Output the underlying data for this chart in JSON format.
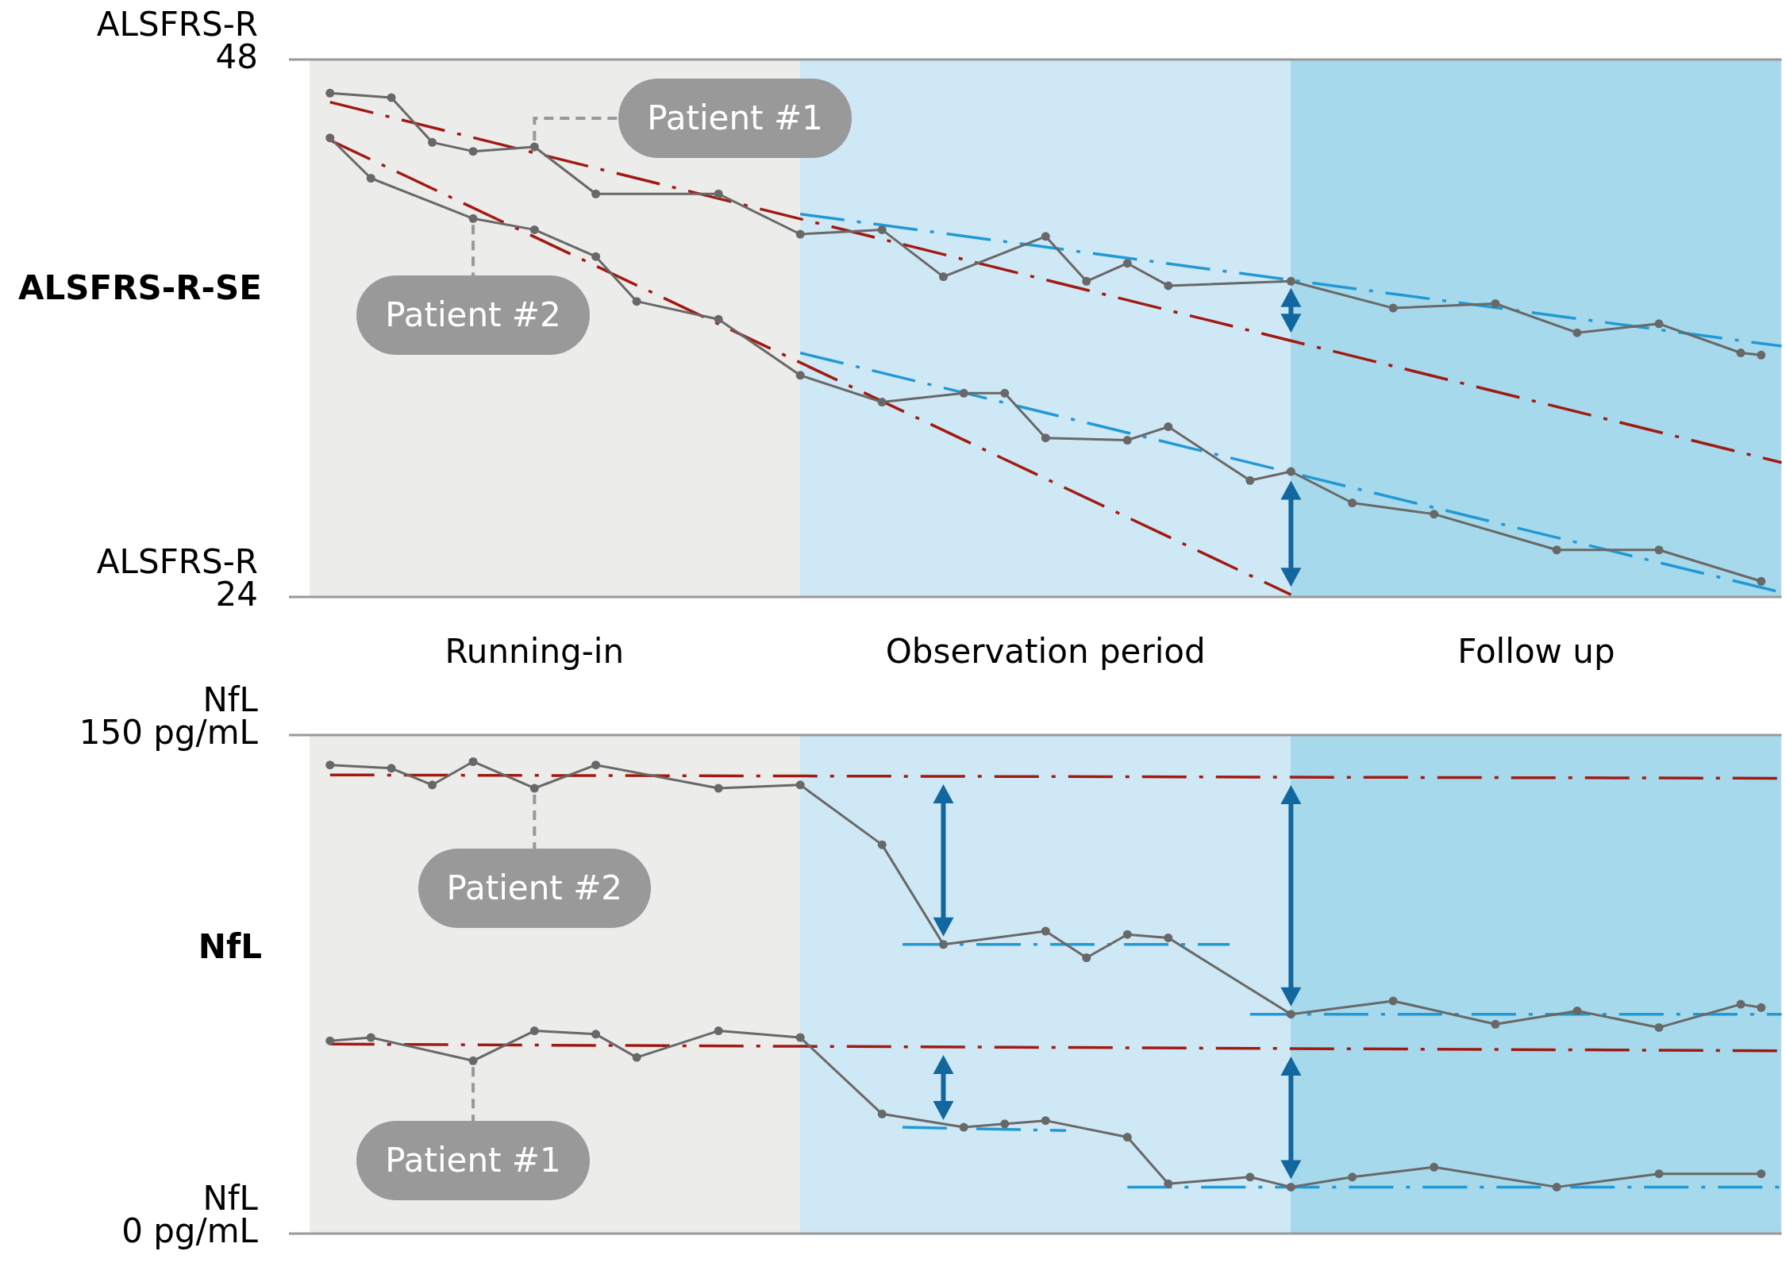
{
  "chart_data": [
    {
      "type": "line",
      "ylabel": "ALSFRS-R-SE",
      "annotations": [
        "ALSFRS-R",
        "ALSFRS-R"
      ],
      "categories": [
        null,
        null,
        null,
        null,
        null,
        null,
        null,
        null,
        null,
        null,
        null,
        "Running-in",
        null,
        null,
        null,
        null,
        null,
        null,
        null,
        null,
        null,
        null,
        null,
        null,
        null,
        null,
        null,
        null,
        null,
        null,
        null,
        null,
        null,
        null,
        null,
        null,
        "Observation period",
        null,
        null,
        null,
        null,
        null,
        null,
        null,
        null,
        null,
        null,
        null,
        null,
        null,
        null,
        null,
        null,
        null,
        null,
        null,
        null,
        null,
        null,
        null,
        "Follow up",
        null,
        null,
        null,
        null,
        null,
        null,
        null,
        null,
        null,
        null,
        null,
        null
      ],
      "ylim": [
        24,
        48
      ],
      "yticks": [
        24,
        48
      ],
      "series": [
        {
          "name": "Patient #1",
          "color": "#686868",
          "marker": "circle",
          "values": [
            null,
            46.5,
            null,
            null,
            46.3,
            null,
            44.3,
            null,
            43.9,
            null,
            null,
            44.1,
            null,
            null,
            42.0,
            null,
            null,
            null,
            null,
            null,
            42.0,
            null,
            null,
            null,
            40.2,
            null,
            null,
            null,
            40.4,
            null,
            null,
            38.3,
            null,
            null,
            null,
            null,
            40.1,
            null,
            38.1,
            null,
            38.9,
            null,
            37.9,
            null,
            null,
            null,
            null,
            null,
            38.1,
            null,
            null,
            null,
            null,
            36.9,
            null,
            null,
            null,
            null,
            37.1,
            null,
            null,
            null,
            35.8,
            null,
            null,
            null,
            36.2,
            null,
            null,
            null,
            34.9,
            34.8,
            null
          ]
        },
        {
          "name": "Patient #2",
          "color": "#686868",
          "marker": "circle",
          "values": [
            null,
            44.5,
            null,
            42.7,
            null,
            null,
            null,
            null,
            40.9,
            null,
            null,
            40.4,
            null,
            null,
            39.2,
            null,
            37.2,
            null,
            null,
            null,
            36.4,
            null,
            null,
            null,
            33.9,
            null,
            null,
            null,
            32.7,
            null,
            null,
            null,
            33.1,
            null,
            33.1,
            null,
            31.1,
            null,
            null,
            null,
            31.0,
            null,
            31.6,
            null,
            null,
            null,
            29.2,
            null,
            29.6,
            null,
            null,
            28.2,
            null,
            null,
            null,
            27.7,
            null,
            null,
            null,
            null,
            null,
            26.1,
            null,
            null,
            null,
            null,
            26.1,
            null,
            null,
            null,
            null,
            24.7,
            null
          ]
        },
        {
          "color": "#a11a12",
          "line_style": "dashed",
          "values": [
            null,
            46.1,
            null,
            null,
            null,
            null,
            null,
            null,
            null,
            null,
            null,
            null,
            null,
            null,
            null,
            null,
            null,
            null,
            null,
            null,
            null,
            null,
            null,
            null,
            null,
            null,
            null,
            null,
            null,
            null,
            null,
            null,
            null,
            null,
            null,
            null,
            null,
            null,
            null,
            null,
            null,
            null,
            null,
            null,
            null,
            null,
            null,
            null,
            null,
            null,
            null,
            null,
            null,
            null,
            null,
            null,
            null,
            null,
            null,
            null,
            null,
            null,
            null,
            null,
            null,
            null,
            null,
            null,
            null,
            null,
            null,
            null,
            30.0
          ]
        },
        {
          "color": "#a11a12",
          "line_style": "dashed",
          "values": [
            null,
            44.4,
            null,
            null,
            null,
            null,
            null,
            null,
            null,
            null,
            null,
            null,
            null,
            null,
            null,
            null,
            null,
            null,
            null,
            null,
            null,
            null,
            null,
            null,
            null,
            null,
            null,
            null,
            null,
            null,
            null,
            null,
            null,
            null,
            null,
            null,
            null,
            null,
            null,
            null,
            null,
            null,
            null,
            null,
            null,
            null,
            null,
            null,
            24.1,
            null,
            null,
            null,
            null,
            null,
            null,
            null,
            null,
            null,
            null,
            null,
            null,
            null,
            null,
            null,
            null,
            null,
            null,
            null,
            null,
            null,
            null,
            null,
            null
          ]
        },
        {
          "color": "#2199d4",
          "line_style": "dashed",
          "values": [
            null,
            null,
            null,
            null,
            null,
            null,
            null,
            null,
            null,
            null,
            null,
            null,
            null,
            null,
            null,
            null,
            null,
            null,
            null,
            null,
            null,
            null,
            null,
            null,
            41.1,
            null,
            null,
            null,
            null,
            null,
            null,
            null,
            null,
            null,
            null,
            null,
            null,
            null,
            null,
            null,
            null,
            null,
            null,
            null,
            null,
            null,
            null,
            null,
            null,
            null,
            null,
            null,
            null,
            null,
            null,
            null,
            null,
            null,
            null,
            null,
            null,
            null,
            null,
            null,
            null,
            null,
            null,
            null,
            null,
            null,
            null,
            null,
            35.2
          ]
        },
        {
          "color": "#2199d4",
          "line_style": "dashed",
          "values": [
            null,
            null,
            null,
            null,
            null,
            null,
            null,
            null,
            null,
            null,
            null,
            null,
            null,
            null,
            null,
            null,
            null,
            null,
            null,
            null,
            null,
            null,
            null,
            null,
            34.9,
            null,
            null,
            null,
            null,
            null,
            null,
            null,
            null,
            null,
            null,
            null,
            null,
            null,
            null,
            null,
            null,
            null,
            null,
            null,
            null,
            null,
            null,
            null,
            null,
            null,
            null,
            null,
            null,
            null,
            null,
            null,
            null,
            null,
            null,
            null,
            null,
            null,
            null,
            null,
            null,
            null,
            null,
            null,
            null,
            null,
            null,
            null,
            24.2
          ]
        }
      ]
    },
    {
      "type": "line",
      "ylabel": "NfL",
      "annotations": [
        "NfL",
        "NfL"
      ],
      "categories": [
        null,
        null,
        null,
        null,
        null,
        null,
        null,
        null,
        null,
        null,
        null,
        null,
        null,
        null,
        null,
        null,
        null,
        null,
        null,
        null,
        null,
        null,
        null,
        null,
        null,
        null,
        null,
        null,
        null,
        null,
        null,
        null,
        null,
        null,
        null,
        null,
        null,
        null,
        null,
        null,
        null,
        null,
        null,
        null,
        null,
        null,
        null,
        null,
        null,
        null,
        null,
        null,
        null,
        null,
        null,
        null,
        null,
        null,
        null,
        null,
        null,
        null,
        null,
        null,
        null,
        null,
        null,
        null,
        null,
        null,
        null,
        null,
        null
      ],
      "ylim": [
        0,
        150
      ],
      "yticks": [
        {
          "value": 0,
          "label": "0 pg/mL"
        },
        {
          "value": 150,
          "label": "150 pg/mL"
        }
      ],
      "series": [
        {
          "name": "Patient #2",
          "color": "#686868",
          "marker": "circle",
          "values": [
            null,
            141,
            null,
            null,
            140,
            null,
            135,
            null,
            142,
            null,
            null,
            134,
            null,
            null,
            141,
            null,
            null,
            null,
            null,
            null,
            134,
            null,
            null,
            null,
            135,
            null,
            null,
            null,
            117,
            null,
            null,
            87,
            null,
            null,
            null,
            null,
            91,
            null,
            83,
            null,
            90,
            null,
            89,
            null,
            null,
            null,
            null,
            null,
            66,
            null,
            null,
            null,
            null,
            70,
            null,
            null,
            null,
            null,
            63,
            null,
            null,
            null,
            67,
            null,
            null,
            null,
            62,
            null,
            null,
            null,
            69,
            68,
            null
          ]
        },
        {
          "name": "Patient #1",
          "color": "#686868",
          "marker": "circle",
          "values": [
            null,
            58,
            null,
            59,
            null,
            null,
            null,
            null,
            52,
            null,
            null,
            61,
            null,
            null,
            60,
            null,
            53,
            null,
            null,
            null,
            61,
            null,
            null,
            null,
            59,
            null,
            null,
            null,
            36,
            null,
            null,
            null,
            32,
            null,
            33,
            null,
            34,
            null,
            null,
            null,
            29,
            null,
            15,
            null,
            null,
            null,
            17,
            null,
            14,
            null,
            null,
            17,
            null,
            null,
            null,
            20,
            null,
            null,
            null,
            null,
            null,
            14,
            null,
            null,
            null,
            null,
            18,
            null,
            null,
            null,
            null,
            18,
            null
          ]
        },
        {
          "color": "#a11a12",
          "line_style": "dashed",
          "values": [
            null,
            138,
            null,
            null,
            null,
            null,
            null,
            null,
            null,
            null,
            null,
            null,
            null,
            null,
            null,
            null,
            null,
            null,
            null,
            null,
            null,
            null,
            null,
            null,
            null,
            null,
            null,
            null,
            null,
            null,
            null,
            null,
            null,
            null,
            null,
            null,
            null,
            null,
            null,
            null,
            null,
            null,
            null,
            null,
            null,
            null,
            null,
            null,
            null,
            null,
            null,
            null,
            null,
            null,
            null,
            null,
            null,
            null,
            null,
            null,
            null,
            null,
            null,
            null,
            null,
            null,
            null,
            null,
            null,
            null,
            null,
            null,
            137
          ]
        },
        {
          "color": "#a11a12",
          "line_style": "dashed",
          "values": [
            null,
            57,
            null,
            null,
            null,
            null,
            null,
            null,
            null,
            null,
            null,
            null,
            null,
            null,
            null,
            null,
            null,
            null,
            null,
            null,
            null,
            null,
            null,
            null,
            null,
            null,
            null,
            null,
            null,
            null,
            null,
            null,
            null,
            null,
            null,
            null,
            null,
            null,
            null,
            null,
            null,
            null,
            null,
            null,
            null,
            null,
            null,
            null,
            null,
            null,
            null,
            null,
            null,
            null,
            null,
            null,
            null,
            null,
            null,
            null,
            null,
            null,
            null,
            null,
            null,
            null,
            null,
            null,
            null,
            null,
            null,
            null,
            55
          ]
        },
        {
          "color": "#2199d4",
          "line_style": "dashed",
          "values": [
            null,
            null,
            null,
            null,
            null,
            null,
            null,
            null,
            null,
            null,
            null,
            null,
            null,
            null,
            null,
            null,
            null,
            null,
            null,
            null,
            null,
            null,
            null,
            null,
            null,
            null,
            null,
            null,
            null,
            87,
            null,
            null,
            null,
            null,
            null,
            null,
            null,
            null,
            null,
            null,
            null,
            null,
            null,
            null,
            null,
            87,
            null,
            null,
            null,
            null,
            null,
            null,
            null,
            null,
            null,
            null,
            null,
            null,
            null,
            null,
            null,
            null,
            null,
            null,
            null,
            null,
            null,
            null,
            null,
            null,
            null,
            null,
            null
          ]
        },
        {
          "color": "#2199d4",
          "line_style": "dashed",
          "values": [
            null,
            null,
            null,
            null,
            null,
            null,
            null,
            null,
            null,
            null,
            null,
            null,
            null,
            null,
            null,
            null,
            null,
            null,
            null,
            null,
            null,
            null,
            null,
            null,
            null,
            null,
            null,
            null,
            null,
            null,
            null,
            null,
            null,
            null,
            null,
            null,
            null,
            null,
            null,
            null,
            null,
            null,
            null,
            null,
            null,
            null,
            66,
            null,
            null,
            null,
            null,
            null,
            null,
            null,
            null,
            null,
            null,
            null,
            null,
            null,
            null,
            null,
            null,
            null,
            null,
            null,
            null,
            null,
            null,
            null,
            null,
            null,
            66
          ]
        },
        {
          "color": "#2199d4",
          "line_style": "dashed",
          "values": [
            null,
            null,
            null,
            null,
            null,
            null,
            null,
            null,
            null,
            null,
            null,
            null,
            null,
            null,
            null,
            null,
            null,
            null,
            null,
            null,
            null,
            null,
            null,
            null,
            null,
            null,
            null,
            null,
            null,
            32,
            null,
            null,
            null,
            null,
            null,
            null,
            null,
            31,
            null,
            null,
            null,
            null,
            null,
            null,
            null,
            null,
            null,
            null,
            null,
            null,
            null,
            null,
            null,
            null,
            null,
            null,
            null,
            null,
            null,
            null,
            null,
            null,
            null,
            null,
            null,
            null,
            null,
            null,
            null,
            null,
            null,
            null,
            null
          ]
        },
        {
          "color": "#2199d4",
          "line_style": "dashed",
          "values": [
            null,
            null,
            null,
            null,
            null,
            null,
            null,
            null,
            null,
            null,
            null,
            null,
            null,
            null,
            null,
            null,
            null,
            null,
            null,
            null,
            null,
            null,
            null,
            null,
            null,
            null,
            null,
            null,
            null,
            null,
            null,
            null,
            null,
            null,
            null,
            null,
            null,
            null,
            null,
            null,
            14,
            null,
            null,
            null,
            null,
            null,
            null,
            null,
            null,
            null,
            null,
            null,
            null,
            null,
            null,
            null,
            null,
            null,
            null,
            null,
            null,
            null,
            null,
            null,
            null,
            null,
            null,
            null,
            null,
            null,
            null,
            null,
            14
          ]
        }
      ]
    }
  ]
}
